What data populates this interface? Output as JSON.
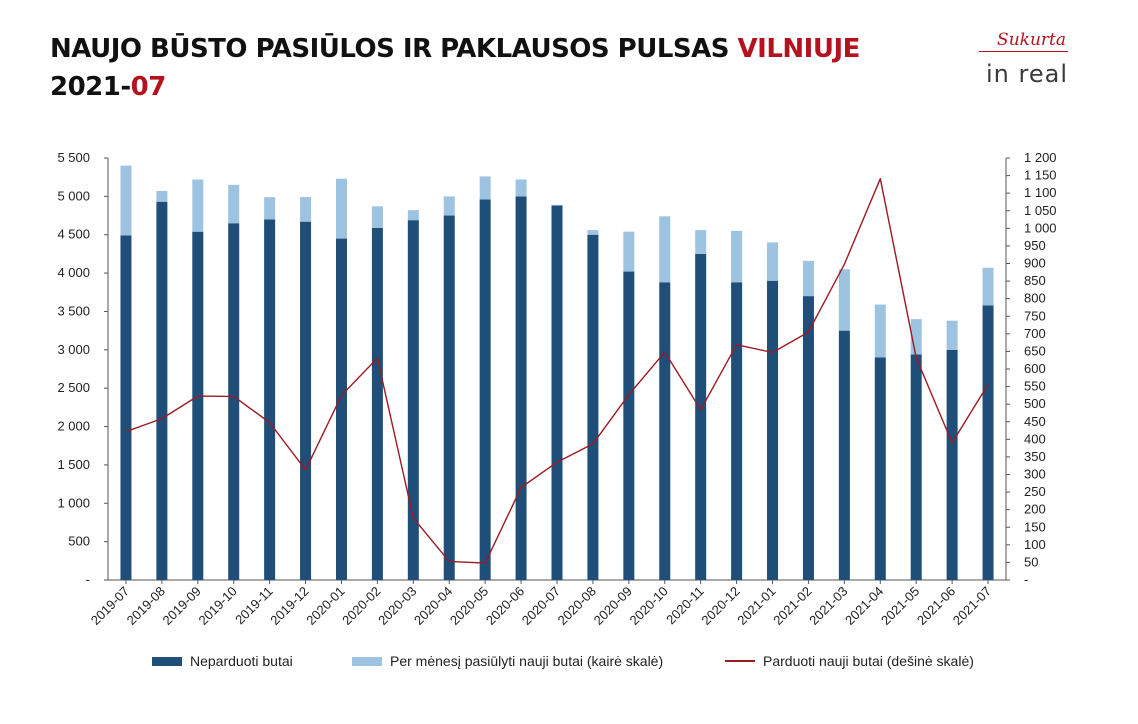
{
  "header": {
    "title_main": "NAUJO BŪSTO PASIŪLOS IR PAKLAUSOS PULSAS ",
    "title_accent": "VILNIUJE",
    "period_main": "2021-",
    "period_accent": "07"
  },
  "brand": {
    "sukurta": "Sukurta",
    "logo": "in real"
  },
  "colors": {
    "unsold": "#1f4e79",
    "offered": "#9dc3e0",
    "sold": "#9b1b24",
    "accent": "#b3121e"
  },
  "chart_data": {
    "type": "bar",
    "categories": [
      "2019-07",
      "2019-08",
      "2019-09",
      "2019-10",
      "2019-11",
      "2019-12",
      "2020-01",
      "2020-02",
      "2020-03",
      "2020-04",
      "2020-05",
      "2020-06",
      "2020-07",
      "2020-08",
      "2020-09",
      "2020-10",
      "2020-11",
      "2020-12",
      "2021-01",
      "2021-02",
      "2021-03",
      "2021-04",
      "2021-05",
      "2021-06",
      "2021-07"
    ],
    "series": [
      {
        "name": "Neparduoti butai",
        "kind": "bar-stack",
        "axis": "left",
        "values": [
          4490,
          4930,
          4540,
          4650,
          4700,
          4670,
          4450,
          4590,
          4690,
          4750,
          4960,
          5000,
          4880,
          4500,
          4020,
          3880,
          4250,
          3880,
          3900,
          3700,
          3250,
          2900,
          2940,
          3000,
          3580
        ]
      },
      {
        "name": "Per mėnesį pasiūlyti nauji butai (kairė skalė)",
        "kind": "bar-stack",
        "axis": "left",
        "values": [
          910,
          140,
          680,
          500,
          290,
          320,
          780,
          280,
          130,
          250,
          300,
          220,
          10,
          60,
          520,
          860,
          310,
          670,
          500,
          460,
          800,
          690,
          460,
          380,
          490
        ]
      },
      {
        "name": "Parduoti nauji butai (dešinė skalė)",
        "kind": "line",
        "axis": "right",
        "values": [
          422,
          459,
          523,
          522,
          448,
          313,
          525,
          631,
          176,
          53,
          48,
          263,
          335,
          387,
          527,
          648,
          484,
          669,
          647,
          705,
          898,
          1141,
          632,
          390,
          556
        ]
      }
    ],
    "y_left": {
      "min": 0,
      "max": 5500,
      "step": 500,
      "tick_labels": [
        "-",
        "500",
        "1 000",
        "1 500",
        "2 000",
        "2 500",
        "3 000",
        "3 500",
        "4 000",
        "4 500",
        "5 000",
        "5 500"
      ]
    },
    "y_right": {
      "min": 0,
      "max": 1200,
      "step": 50,
      "tick_labels": [
        "-",
        "50",
        "100",
        "150",
        "200",
        "250",
        "300",
        "350",
        "400",
        "450",
        "500",
        "550",
        "600",
        "650",
        "700",
        "750",
        "800",
        "850",
        "900",
        "950",
        "1 000",
        "1 050",
        "1 100",
        "1 150",
        "1 200"
      ]
    },
    "title": "NAUJO BŪSTO PASIŪLOS IR PAKLAUSOS PULSAS VILNIUJE",
    "xlabel": "",
    "ylabel": "",
    "legend_position": "bottom",
    "grid": false
  }
}
